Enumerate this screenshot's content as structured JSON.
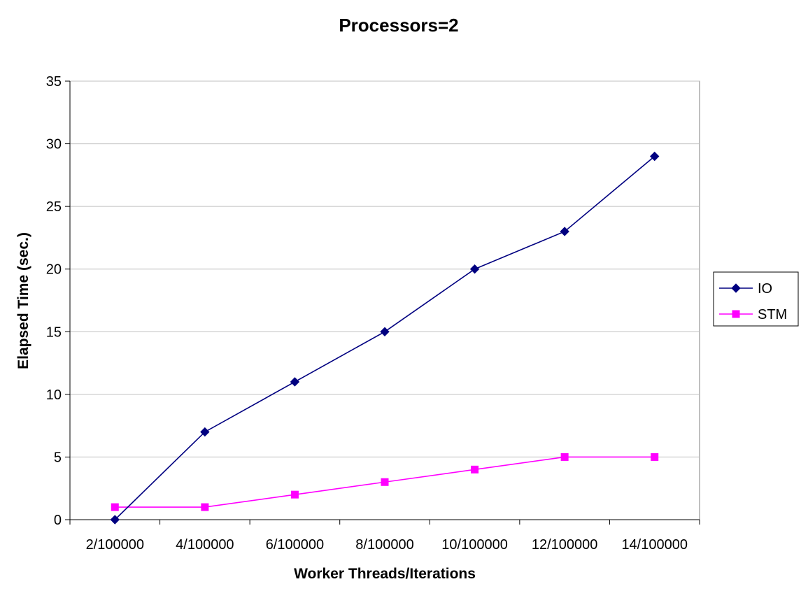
{
  "chart_data": {
    "type": "line",
    "title": "Processors=2",
    "xlabel": "Worker Threads/Iterations",
    "ylabel": "Elapsed Time (sec.)",
    "categories": [
      "2/100000",
      "4/100000",
      "6/100000",
      "8/100000",
      "10/100000",
      "12/100000",
      "14/100000"
    ],
    "ylim": [
      0,
      35
    ],
    "yticks": [
      0,
      5,
      10,
      15,
      20,
      25,
      30,
      35
    ],
    "grid": true,
    "legend_position": "right",
    "series": [
      {
        "name": "IO",
        "values": [
          0,
          7,
          11,
          15,
          20,
          23,
          29
        ],
        "color": "#000080",
        "marker": "diamond"
      },
      {
        "name": "STM",
        "values": [
          1,
          1,
          2,
          3,
          4,
          5,
          5
        ],
        "color": "#ff00ff",
        "marker": "square"
      }
    ]
  }
}
